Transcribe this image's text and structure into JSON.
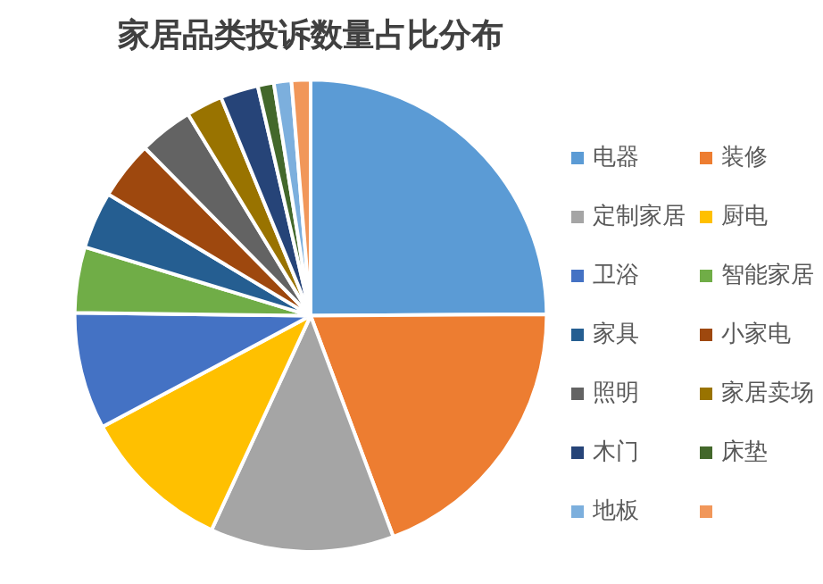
{
  "chart_data": {
    "type": "pie",
    "title": "家居品类投诉数量占比分布",
    "categories": [
      "电器",
      "装修",
      "定制家居",
      "厨电",
      "卫浴",
      "智能家居",
      "家具",
      "小家电",
      "照明",
      "家居卖场",
      "木门",
      "床垫",
      "地板",
      null
    ],
    "values": [
      24.9,
      19.4,
      12.6,
      10.3,
      8,
      4.5,
      3.9,
      4,
      3.7,
      2.5,
      2.6,
      1.1,
      1.2,
      1.3
    ],
    "colors": [
      "#5b9bd5",
      "#ed7d31",
      "#a5a5a5",
      "#ffc000",
      "#4472c4",
      "#70ad47",
      "#255e91",
      "#9e480e",
      "#636363",
      "#997300",
      "#264478",
      "#43682b",
      "#7cafdd",
      "#f1975a"
    ],
    "legend": "right"
  }
}
